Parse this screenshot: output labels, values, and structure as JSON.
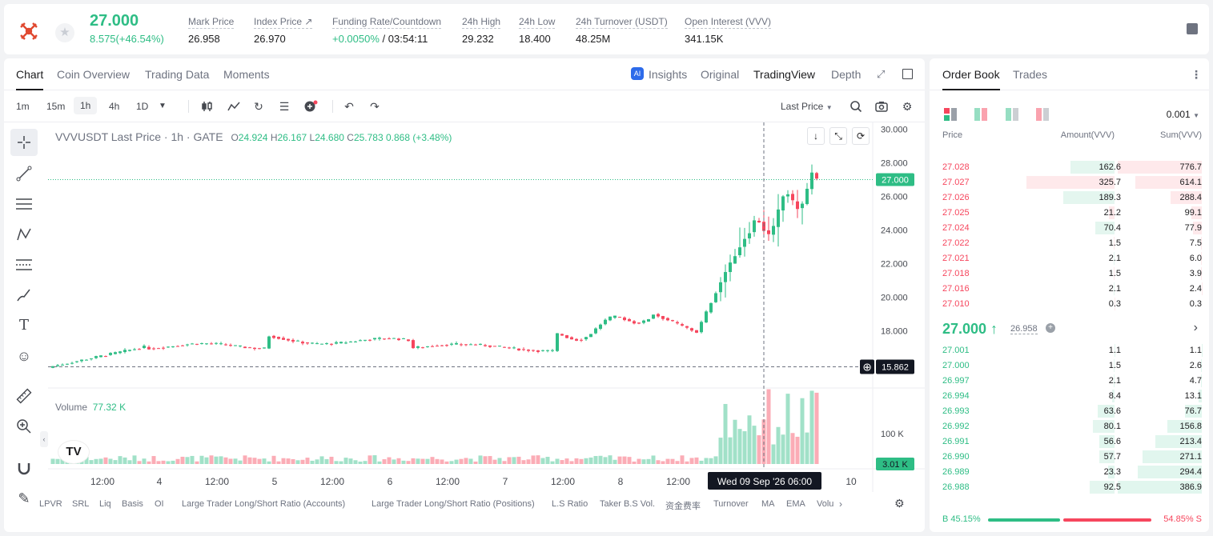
{
  "header": {
    "last_price": "27.000",
    "change": "8.575(+46.54%)",
    "stats": [
      {
        "label": "Mark Price",
        "value": "26.958"
      },
      {
        "label": "Index Price ↗",
        "value": "26.970"
      },
      {
        "label": "Funding Rate/Countdown",
        "value_green": "+0.0050%",
        "value": "/ 03:54:11"
      },
      {
        "label": "24h High",
        "value": "29.232"
      },
      {
        "label": "24h Low",
        "value": "18.400"
      },
      {
        "label": "24h Turnover (USDT)",
        "value": "48.25M"
      },
      {
        "label": "Open Interest (VVV)",
        "value": "341.15K"
      }
    ]
  },
  "chart_tabs": [
    "Chart",
    "Coin Overview",
    "Trading Data",
    "Moments"
  ],
  "chart_right_tabs": {
    "insights": "Insights",
    "original": "Original",
    "tradingview": "TradingView",
    "depth": "Depth"
  },
  "intervals": [
    "1m",
    "15m",
    "1h",
    "4h",
    "1D"
  ],
  "price_type": "Last Price",
  "legend": {
    "symbol": "VVVUSDT Last Price · 1h · GATE",
    "o_label": "O",
    "o": "24.924",
    "h_label": "H",
    "h": "26.167",
    "l_label": "L",
    "l": "24.680",
    "c_label": "C",
    "c": "25.783",
    "chg": "0.868 (+3.48%)"
  },
  "volume_legend": {
    "label": "Volume",
    "value": "77.32 K"
  },
  "price_tags": {
    "current": "27.000",
    "crosshair": "15.862",
    "volume": "3.01 K",
    "time": "Wed 09 Sep '26   06:00"
  },
  "indicators": [
    "LPVR",
    "SRL",
    "Liq",
    "Basis",
    "OI",
    "Large Trader Long/Short Ratio (Accounts)",
    "Large Trader Long/Short Ratio (Positions)",
    "L.S Ratio",
    "Taker B.S Vol.",
    "资金费率",
    "Turnover",
    "MA",
    "EMA",
    "Volu"
  ],
  "chart_data": {
    "type": "candlestick",
    "y_ticks": [
      "30.000",
      "28.000",
      "26.000",
      "24.000",
      "22.000",
      "20.000",
      "18.000"
    ],
    "ylim": [
      14.6,
      30.4
    ],
    "volume_ticks": [
      "100 K"
    ],
    "x_ticks": [
      "12:00",
      "4",
      "12:00",
      "5",
      "12:00",
      "6",
      "12:00",
      "7",
      "12:00",
      "8",
      "12:00",
      "10"
    ],
    "current_price": 27.0,
    "crosshair_price": 15.862
  },
  "orderbook": {
    "tabs": [
      "Order Book",
      "Trades"
    ],
    "precision": "0.001",
    "headers": {
      "price": "Price",
      "amount": "Amount(VVV)",
      "sum": "Sum(VVV)"
    },
    "asks": [
      {
        "price": "27.028",
        "amount": "162.6",
        "sum": "776.7"
      },
      {
        "price": "27.027",
        "amount": "325.7",
        "sum": "614.1"
      },
      {
        "price": "27.026",
        "amount": "189.3",
        "sum": "288.4"
      },
      {
        "price": "27.025",
        "amount": "21.2",
        "sum": "99.1"
      },
      {
        "price": "27.024",
        "amount": "70.4",
        "sum": "77.9"
      },
      {
        "price": "27.022",
        "amount": "1.5",
        "sum": "7.5"
      },
      {
        "price": "27.021",
        "amount": "2.1",
        "sum": "6.0"
      },
      {
        "price": "27.018",
        "amount": "1.5",
        "sum": "3.9"
      },
      {
        "price": "27.016",
        "amount": "2.1",
        "sum": "2.4"
      },
      {
        "price": "27.010",
        "amount": "0.3",
        "sum": "0.3"
      }
    ],
    "mid_price": "27.000 ↑",
    "mark_price": "26.958",
    "bids": [
      {
        "price": "27.001",
        "amount": "1.1",
        "sum": "1.1"
      },
      {
        "price": "27.000",
        "amount": "1.5",
        "sum": "2.6"
      },
      {
        "price": "26.997",
        "amount": "2.1",
        "sum": "4.7"
      },
      {
        "price": "26.994",
        "amount": "8.4",
        "sum": "13.1"
      },
      {
        "price": "26.993",
        "amount": "63.6",
        "sum": "76.7"
      },
      {
        "price": "26.992",
        "amount": "80.1",
        "sum": "156.8"
      },
      {
        "price": "26.991",
        "amount": "56.6",
        "sum": "213.4"
      },
      {
        "price": "26.990",
        "amount": "57.7",
        "sum": "271.1"
      },
      {
        "price": "26.989",
        "amount": "23.3",
        "sum": "294.4"
      },
      {
        "price": "26.988",
        "amount": "92.5",
        "sum": "386.9"
      }
    ],
    "buy_ratio": "B  45.15%",
    "sell_ratio": "54.85%  S",
    "buy_fraction": 0.4515
  },
  "colors": {
    "up": "#2ebd85",
    "down": "#f6465d"
  }
}
